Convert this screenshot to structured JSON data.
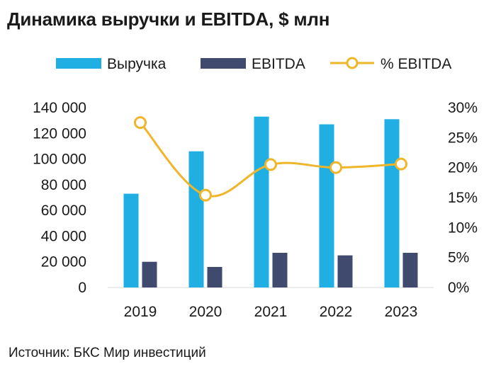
{
  "title": "Динамика выручки и EBITDA, $ млн",
  "source": "Источник: БКС Мир инвестиций",
  "chart_data": {
    "type": "bar",
    "categories": [
      "2019",
      "2020",
      "2021",
      "2022",
      "2023"
    ],
    "series": [
      {
        "name": "Выручка",
        "kind": "bar",
        "axis": "left",
        "color": "#1fafe3",
        "values": [
          73000,
          106000,
          133000,
          127000,
          131000
        ]
      },
      {
        "name": "EBITDA",
        "kind": "bar",
        "axis": "left",
        "color": "#3f4a6e",
        "values": [
          20000,
          16000,
          27000,
          25000,
          27000
        ]
      },
      {
        "name": "% EBITDA",
        "kind": "line",
        "axis": "right",
        "color": "#f0b62a",
        "values": [
          27.5,
          15.4,
          20.5,
          20.0,
          20.6
        ]
      }
    ],
    "left_axis": {
      "ylim": [
        0,
        140000
      ],
      "ticks": [
        "0",
        "20 000",
        "40 000",
        "60 000",
        "80 000",
        "100 000",
        "120 000",
        "140 000"
      ]
    },
    "right_axis": {
      "ylim": [
        0,
        30
      ],
      "ticks": [
        "0%",
        "5%",
        "10%",
        "15%",
        "20%",
        "25%",
        "30%"
      ]
    },
    "legend_position": "top",
    "grid": false
  }
}
